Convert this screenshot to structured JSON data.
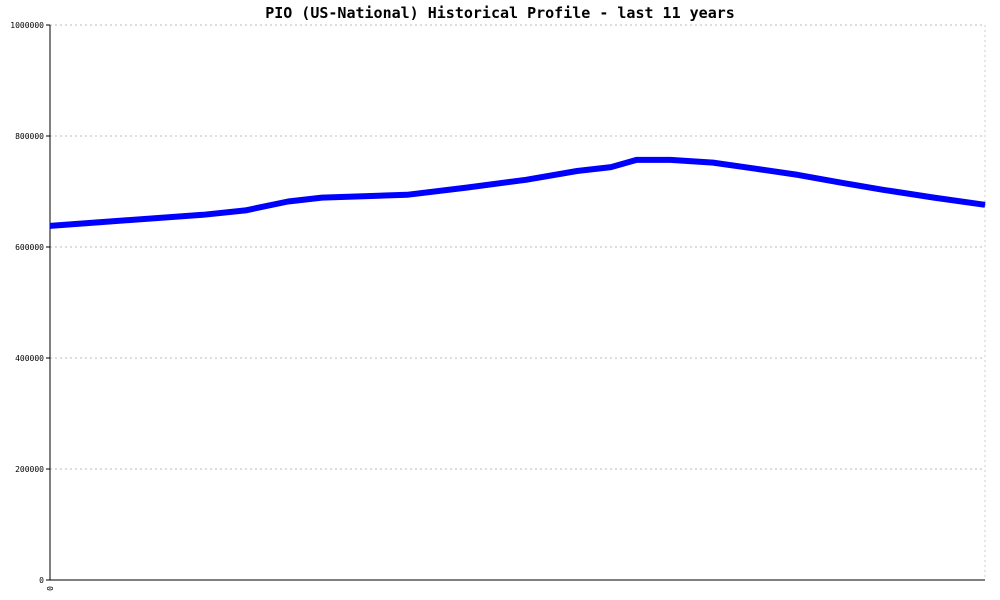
{
  "chart_data": {
    "type": "line",
    "title": "PIO (US-National) Historical Profile - last 11 years",
    "xlabel": "",
    "ylabel": "",
    "x_tick_labels": [
      "0"
    ],
    "y_ticks": [
      0,
      200000,
      400000,
      600000,
      800000,
      1000000
    ],
    "y_tick_labels": [
      "0",
      "200000",
      "400000",
      "600000",
      "800000",
      "1000000"
    ],
    "ylim": [
      0,
      1000000
    ],
    "grid": true,
    "legend": "none",
    "series": [
      {
        "color": "#0000ff",
        "x": [
          0,
          0.7,
          1.8,
          2.3,
          2.8,
          3.2,
          3.6,
          4.2,
          4.9,
          5.6,
          6.2,
          6.6,
          6.9,
          7.3,
          7.8,
          8.3,
          8.8,
          9.3,
          9.8,
          10.4,
          11
        ],
        "values": [
          638000,
          646000,
          658000,
          666000,
          682000,
          689000,
          691000,
          694000,
          707000,
          721000,
          737000,
          744000,
          757000,
          757000,
          752000,
          741000,
          730000,
          716000,
          703000,
          689000,
          676000
        ]
      }
    ]
  }
}
